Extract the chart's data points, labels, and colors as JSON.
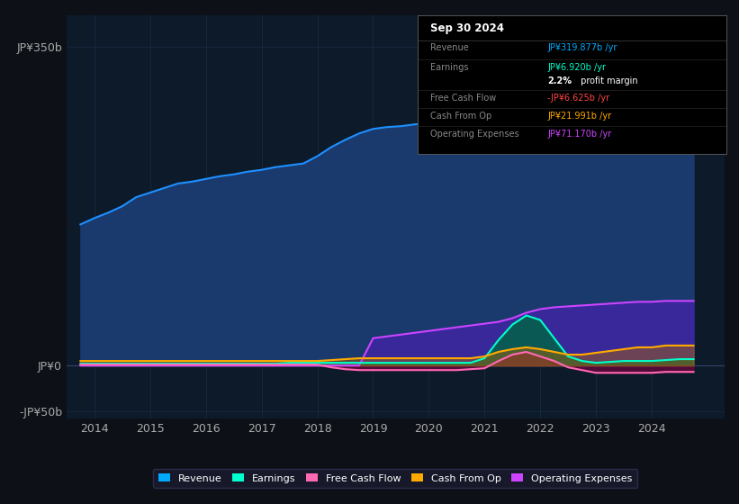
{
  "bg_color": "#0d1117",
  "plot_bg_color": "#0d1a2a",
  "grid_color": "#1e3a5a",
  "title_date": "Sep 30 2024",
  "ylabel_top": "JP¥350b",
  "ylabel_zero": "JP¥0",
  "ylabel_neg": "-JP¥50b",
  "ylim": [
    -58,
    385
  ],
  "xlim_start": 2013.5,
  "xlim_end": 2025.3,
  "xticks": [
    2014,
    2015,
    2016,
    2017,
    2018,
    2019,
    2020,
    2021,
    2022,
    2023,
    2024
  ],
  "series": {
    "revenue": {
      "color": "#1e90ff",
      "fill_color": "#1a3a6e",
      "label": "Revenue",
      "legend_color": "#00aaff"
    },
    "earnings": {
      "color": "#00ffcc",
      "fill_color": "#006644",
      "label": "Earnings",
      "legend_color": "#00ffcc"
    },
    "fcf": {
      "color": "#ff69b4",
      "fill_color": "#880044",
      "label": "Free Cash Flow",
      "legend_color": "#ff69b4"
    },
    "cashfromop": {
      "color": "#ffaa00",
      "fill_color": "#aa6600",
      "label": "Cash From Op",
      "legend_color": "#ffaa00"
    },
    "opex": {
      "color": "#cc44ff",
      "fill_color": "#4422aa",
      "label": "Operating Expenses",
      "legend_color": "#cc44ff"
    }
  },
  "revenue_x": [
    2013.75,
    2014.0,
    2014.25,
    2014.5,
    2014.75,
    2015.0,
    2015.25,
    2015.5,
    2015.75,
    2016.0,
    2016.25,
    2016.5,
    2016.75,
    2017.0,
    2017.25,
    2017.5,
    2017.75,
    2018.0,
    2018.25,
    2018.5,
    2018.75,
    2019.0,
    2019.25,
    2019.5,
    2019.75,
    2020.0,
    2020.25,
    2020.5,
    2020.75,
    2021.0,
    2021.25,
    2021.5,
    2021.75,
    2022.0,
    2022.25,
    2022.5,
    2022.75,
    2023.0,
    2023.25,
    2023.5,
    2023.75,
    2024.0,
    2024.25,
    2024.5,
    2024.75
  ],
  "revenue_y": [
    155,
    162,
    168,
    175,
    185,
    190,
    195,
    200,
    202,
    205,
    208,
    210,
    213,
    215,
    218,
    220,
    222,
    230,
    240,
    248,
    255,
    260,
    262,
    263,
    265,
    266,
    267,
    267,
    268,
    272,
    278,
    282,
    288,
    295,
    302,
    308,
    312,
    316,
    318,
    320,
    322,
    325,
    330,
    335,
    320
  ],
  "earnings_x": [
    2013.75,
    2014.0,
    2014.25,
    2014.5,
    2014.75,
    2015.0,
    2015.25,
    2015.5,
    2015.75,
    2016.0,
    2016.25,
    2016.5,
    2016.75,
    2017.0,
    2017.25,
    2017.5,
    2017.75,
    2018.0,
    2018.25,
    2018.5,
    2018.75,
    2019.0,
    2019.25,
    2019.5,
    2019.75,
    2020.0,
    2020.25,
    2020.5,
    2020.75,
    2021.0,
    2021.25,
    2021.5,
    2021.75,
    2022.0,
    2022.25,
    2022.5,
    2022.75,
    2023.0,
    2023.25,
    2023.5,
    2023.75,
    2024.0,
    2024.25,
    2024.5,
    2024.75
  ],
  "earnings_y": [
    2,
    2,
    2,
    2,
    2,
    2,
    2,
    2,
    2,
    2,
    2,
    2,
    2,
    2,
    2,
    3,
    3,
    3,
    3,
    3,
    3,
    3,
    3,
    3,
    3,
    3,
    3,
    3,
    3,
    8,
    28,
    45,
    55,
    50,
    30,
    10,
    5,
    3,
    4,
    5,
    5,
    5,
    6,
    7,
    7
  ],
  "fcf_x": [
    2013.75,
    2014.0,
    2014.25,
    2014.5,
    2014.75,
    2015.0,
    2015.25,
    2015.5,
    2015.75,
    2016.0,
    2016.25,
    2016.5,
    2016.75,
    2017.0,
    2017.25,
    2017.5,
    2017.75,
    2018.0,
    2018.25,
    2018.5,
    2018.75,
    2019.0,
    2019.25,
    2019.5,
    2019.75,
    2020.0,
    2020.25,
    2020.5,
    2020.75,
    2021.0,
    2021.25,
    2021.5,
    2021.75,
    2022.0,
    2022.25,
    2022.5,
    2022.75,
    2023.0,
    2023.25,
    2023.5,
    2023.75,
    2024.0,
    2024.25,
    2024.5,
    2024.75
  ],
  "fcf_y": [
    1,
    1,
    1,
    1,
    1,
    1,
    1,
    1,
    1,
    1,
    1,
    1,
    1,
    1,
    1,
    1,
    1,
    1,
    -2,
    -4,
    -5,
    -5,
    -5,
    -5,
    -5,
    -5,
    -5,
    -5,
    -4,
    -3,
    5,
    12,
    15,
    10,
    5,
    -2,
    -5,
    -8,
    -8,
    -8,
    -8,
    -8,
    -7,
    -7,
    -7
  ],
  "cop_x": [
    2013.75,
    2014.0,
    2014.25,
    2014.5,
    2014.75,
    2015.0,
    2015.25,
    2015.5,
    2015.75,
    2016.0,
    2016.25,
    2016.5,
    2016.75,
    2017.0,
    2017.25,
    2017.5,
    2017.75,
    2018.0,
    2018.25,
    2018.5,
    2018.75,
    2019.0,
    2019.25,
    2019.5,
    2019.75,
    2020.0,
    2020.25,
    2020.5,
    2020.75,
    2021.0,
    2021.25,
    2021.5,
    2021.75,
    2022.0,
    2022.25,
    2022.5,
    2022.75,
    2023.0,
    2023.25,
    2023.5,
    2023.75,
    2024.0,
    2024.25,
    2024.5,
    2024.75
  ],
  "cop_y": [
    5,
    5,
    5,
    5,
    5,
    5,
    5,
    5,
    5,
    5,
    5,
    5,
    5,
    5,
    5,
    5,
    5,
    5,
    6,
    7,
    8,
    8,
    8,
    8,
    8,
    8,
    8,
    8,
    8,
    10,
    15,
    18,
    20,
    18,
    15,
    12,
    12,
    14,
    16,
    18,
    20,
    20,
    22,
    22,
    22
  ],
  "opex_x": [
    2013.75,
    2014.0,
    2014.25,
    2014.5,
    2014.75,
    2015.0,
    2015.25,
    2015.5,
    2015.75,
    2016.0,
    2016.25,
    2016.5,
    2016.75,
    2017.0,
    2017.25,
    2017.5,
    2017.75,
    2018.0,
    2018.25,
    2018.5,
    2018.75,
    2019.0,
    2019.25,
    2019.5,
    2019.75,
    2020.0,
    2020.25,
    2020.5,
    2020.75,
    2021.0,
    2021.25,
    2021.5,
    2021.75,
    2022.0,
    2022.25,
    2022.5,
    2022.75,
    2023.0,
    2023.25,
    2023.5,
    2023.75,
    2024.0,
    2024.25,
    2024.5,
    2024.75
  ],
  "opex_y": [
    0,
    0,
    0,
    0,
    0,
    0,
    0,
    0,
    0,
    0,
    0,
    0,
    0,
    0,
    0,
    0,
    0,
    0,
    0,
    0,
    0,
    30,
    32,
    34,
    36,
    38,
    40,
    42,
    44,
    46,
    48,
    52,
    58,
    62,
    64,
    65,
    66,
    67,
    68,
    69,
    70,
    70,
    71,
    71,
    71
  ],
  "info_rows": [
    {
      "label": "Revenue",
      "value": "JP¥319.877b /yr",
      "val_color": "#00aaff"
    },
    {
      "label": "Earnings",
      "value": "JP¥6.920b /yr",
      "val_color": "#00ffcc"
    },
    {
      "label": "",
      "value": "2.2% profit margin",
      "val_color": "#ffffff",
      "bold": "2.2%"
    },
    {
      "label": "Free Cash Flow",
      "value": "-JP¥6.625b /yr",
      "val_color": "#ff4444"
    },
    {
      "label": "Cash From Op",
      "value": "JP¥21.991b /yr",
      "val_color": "#ffaa00"
    },
    {
      "label": "Operating Expenses",
      "value": "JP¥71.170b /yr",
      "val_color": "#cc44ff"
    }
  ]
}
